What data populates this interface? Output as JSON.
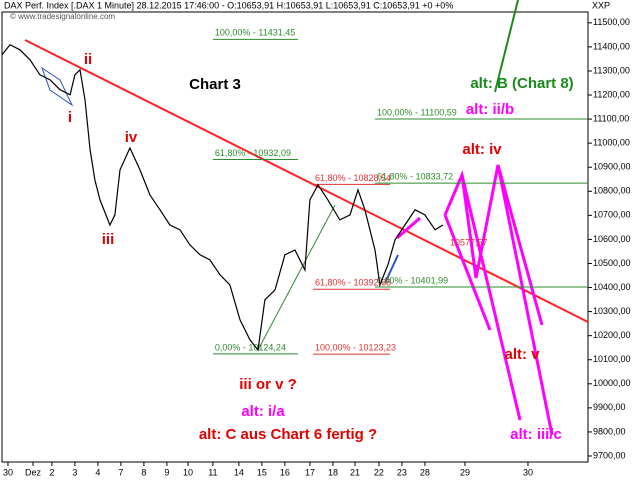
{
  "chart_data": {
    "type": "line",
    "title": "DAX Perf. Index [.DAX  1 Minute] 28.12.2015 17:46:00 - O:10653,91 H:10653,91 L:10653,91 C:10653,91 +0 +0%",
    "watermark": "© www.tradesignalonline.com",
    "axis_unit": "XXP",
    "xlim": [
      -0.26,
      25.22
    ],
    "ylim": [
      9675,
      11545
    ],
    "xticks": [
      {
        "value": 0,
        "label": "30"
      },
      {
        "value": 1.09,
        "label": "Dez"
      },
      {
        "value": 1.91,
        "label": "2"
      },
      {
        "value": 2.91,
        "label": "3"
      },
      {
        "value": 3.91,
        "label": "4"
      },
      {
        "value": 4.91,
        "label": "7"
      },
      {
        "value": 5.91,
        "label": "8"
      },
      {
        "value": 6.91,
        "label": "9"
      },
      {
        "value": 7.83,
        "label": "10"
      },
      {
        "value": 8.91,
        "label": "11"
      },
      {
        "value": 10.04,
        "label": "14"
      },
      {
        "value": 11.04,
        "label": "15"
      },
      {
        "value": 12.04,
        "label": "16"
      },
      {
        "value": 13.13,
        "label": "17"
      },
      {
        "value": 14.13,
        "label": "18"
      },
      {
        "value": 15.09,
        "label": "21"
      },
      {
        "value": 16.13,
        "label": "22"
      },
      {
        "value": 17.13,
        "label": "23"
      },
      {
        "value": 18.13,
        "label": "28"
      },
      {
        "value": 19.87,
        "label": "29"
      },
      {
        "value": 22.61,
        "label": "30"
      }
    ],
    "yticks": [
      {
        "value": 11500,
        "label": "11500,00"
      },
      {
        "value": 11400,
        "label": "11400,00"
      },
      {
        "value": 11300,
        "label": "11300,00"
      },
      {
        "value": 11200,
        "label": "11200,00"
      },
      {
        "value": 11100,
        "label": "11100,00"
      },
      {
        "value": 11000,
        "label": "11000,00"
      },
      {
        "value": 10900,
        "label": "10900,00"
      },
      {
        "value": 10800,
        "label": "10800,00"
      },
      {
        "value": 10700,
        "label": "10700,00"
      },
      {
        "value": 10600,
        "label": "10600,00"
      },
      {
        "value": 10500,
        "label": "10500,00"
      },
      {
        "value": 10400,
        "label": "10400,00"
      },
      {
        "value": 10300,
        "label": "10300,00"
      },
      {
        "value": 10200,
        "label": "10200,00"
      },
      {
        "value": 10100,
        "label": "10100,00"
      },
      {
        "value": 10000,
        "label": "10000,00"
      },
      {
        "value": 9900,
        "label": "9900,00"
      },
      {
        "value": 9800,
        "label": "9800,00"
      },
      {
        "value": 9700,
        "label": "9700,00"
      }
    ],
    "x": [
      -0.26,
      0.09,
      0.52,
      0.96,
      1.39,
      1.83,
      2.26,
      2.7,
      2.91,
      3.13,
      3.35,
      3.57,
      3.78,
      4.0,
      4.43,
      4.65,
      4.87,
      5.3,
      5.74,
      6.17,
      6.61,
      7.04,
      7.48,
      7.91,
      8.35,
      8.78,
      9.22,
      9.65,
      10.09,
      10.52,
      10.87,
      11.17,
      11.61,
      12.04,
      12.48,
      12.91,
      13.13,
      13.48,
      13.91,
      14.43,
      14.87,
      15.22,
      15.52,
      15.96,
      16.17,
      16.52,
      16.83,
      17.26,
      17.7,
      18.13,
      18.57,
      18.91
    ],
    "series": [
      {
        "color": "#000000",
        "values": [
          11367,
          11409,
          11388,
          11346,
          11284,
          11263,
          11222,
          11201,
          11284,
          11305,
          11180,
          10972,
          10847,
          10764,
          10660,
          10702,
          10889,
          10980,
          10889,
          10785,
          10723,
          10660,
          10640,
          10577,
          10536,
          10515,
          10453,
          10411,
          10266,
          10183,
          10141,
          10349,
          10390,
          10536,
          10556,
          10473,
          10764,
          10827,
          10764,
          10681,
          10702,
          10806,
          10723,
          10556,
          10411,
          10494,
          10598,
          10660,
          10723,
          10702,
          10640,
          10660
        ]
      }
    ],
    "levels": [
      {
        "label": "100,00% - 11431,45",
        "value": 11431.45,
        "x": [
          8.91,
          12.61
        ],
        "color": "#2e8b2e"
      },
      {
        "label": "61,80% - 10932,09",
        "value": 10932.09,
        "x": [
          8.91,
          12.61
        ],
        "color": "#2e8b2e"
      },
      {
        "label": "0,00% - 10124,24",
        "value": 10124.24,
        "x": [
          8.91,
          12.61
        ],
        "color": "#2e8b2e"
      },
      {
        "label": "61,80% - 10828,54",
        "value": 10828.54,
        "x": [
          13.26,
          16.61
        ],
        "color": "#e03030"
      },
      {
        "label": "61,80% - 10392,68",
        "value": 10392.68,
        "x": [
          13.26,
          16.61
        ],
        "color": "#e03030"
      },
      {
        "label": "100,00% - 10123,23",
        "value": 10123.23,
        "x": [
          13.26,
          16.61
        ],
        "color": "#e03030"
      },
      {
        "label": "100,00% - 11100,59",
        "value": 11100.59,
        "x": [
          15.96,
          25.22
        ],
        "color": "#2e8b2e"
      },
      {
        "label": "61,80% - 10833,72",
        "value": 10833.72,
        "x": [
          15.96,
          25.22
        ],
        "color": "#2e8b2e"
      },
      {
        "label": "0,00% - 10401,99",
        "value": 10401.99,
        "x": [
          15.96,
          25.22
        ],
        "color": "#2e8b2e"
      }
    ],
    "trend_label": "10577,57",
    "annotations": [
      {
        "text": "ii",
        "color": "#e00000"
      },
      {
        "text": "i",
        "color": "#e00000"
      },
      {
        "text": "iv",
        "color": "#e00000"
      },
      {
        "text": "iii",
        "color": "#e00000"
      },
      {
        "text": "Chart 3",
        "color": "#000000"
      },
      {
        "text": "alt: B (Chart 8)",
        "color": "#1a8a1a"
      },
      {
        "text": "alt: ii/b",
        "color": "#ff00ff"
      },
      {
        "text": "alt: iv",
        "color": "#e00000"
      },
      {
        "text": "iii or v ?",
        "color": "#e00000"
      },
      {
        "text": "alt: i/a",
        "color": "#ff00ff"
      },
      {
        "text": "alt: C aus Chart 6 fertig ?",
        "color": "#e00000"
      },
      {
        "text": "alt: v",
        "color": "#e00000"
      },
      {
        "text": "alt: iii/c",
        "color": "#ff00ff"
      }
    ]
  }
}
